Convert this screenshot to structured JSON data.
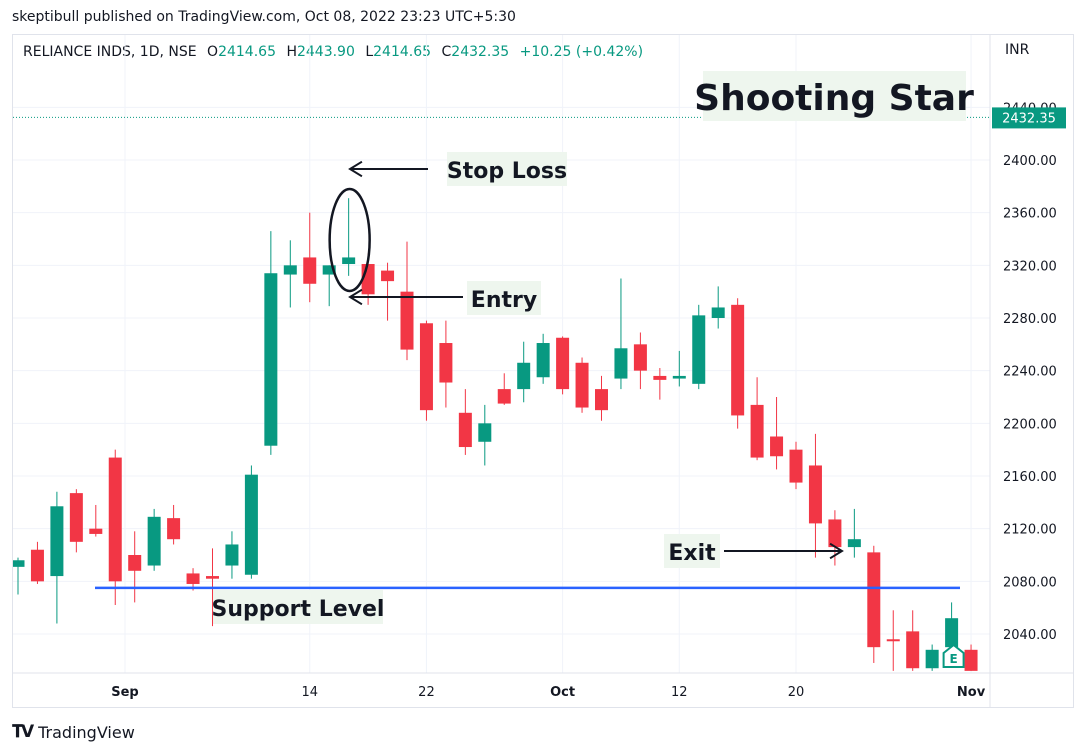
{
  "publisher_line": "skeptibull published on TradingView.com, Oct 08, 2022 23:23 UTC+5:30",
  "symbol_line": "RELIANCE INDS, 1D, NSE",
  "ohlc": {
    "o_label": "O",
    "o": "2414.65",
    "h_label": "H",
    "h": "2443.90",
    "l_label": "L",
    "l": "2414.65",
    "c_label": "C",
    "c": "2432.35",
    "change": "+10.25 (+0.42%)"
  },
  "currency": "INR",
  "logo_text": "TradingView",
  "chart_data": {
    "type": "candlestick",
    "title": "Shooting Star",
    "ylim": [
      2012,
      2445
    ],
    "y_ticks": [
      2040,
      2080,
      2120,
      2160,
      2200,
      2240,
      2280,
      2320,
      2360,
      2400,
      2440
    ],
    "y_tick_labels": [
      "2040.00",
      "2080.00",
      "2120.00",
      "2160.00",
      "2200.00",
      "2240.00",
      "2280.00",
      "2320.00",
      "2360.00",
      "2400.00",
      "2440.00"
    ],
    "x_ticks": [
      {
        "index": 5.5,
        "label": "Sep"
      },
      {
        "index": 15,
        "label": "14"
      },
      {
        "index": 21,
        "label": "22"
      },
      {
        "index": 28,
        "label": "Oct"
      },
      {
        "index": 34,
        "label": "12"
      },
      {
        "index": 40,
        "label": "20"
      },
      {
        "index": 49,
        "label": "Nov"
      }
    ],
    "last_price": 2432.35,
    "last_price_label": "2432.35",
    "support_level": 2075,
    "colors": {
      "up": "#089981",
      "down": "#f23645",
      "support": "#2962ff",
      "grid": "#f0f3fa"
    },
    "candles": [
      {
        "o": 2091,
        "h": 2098,
        "l": 2070,
        "c": 2096
      },
      {
        "o": 2104,
        "h": 2110,
        "l": 2078,
        "c": 2080
      },
      {
        "o": 2084,
        "h": 2148,
        "l": 2048,
        "c": 2137
      },
      {
        "o": 2147,
        "h": 2150,
        "l": 2102,
        "c": 2110
      },
      {
        "o": 2120,
        "h": 2138,
        "l": 2114,
        "c": 2116
      },
      {
        "o": 2174,
        "h": 2180,
        "l": 2062,
        "c": 2080
      },
      {
        "o": 2100,
        "h": 2118,
        "l": 2064,
        "c": 2088
      },
      {
        "o": 2092,
        "h": 2135,
        "l": 2088,
        "c": 2129
      },
      {
        "o": 2128,
        "h": 2138,
        "l": 2108,
        "c": 2112
      },
      {
        "o": 2086,
        "h": 2090,
        "l": 2073,
        "c": 2078
      },
      {
        "o": 2084,
        "h": 2105,
        "l": 2046,
        "c": 2082
      },
      {
        "o": 2092,
        "h": 2118,
        "l": 2082,
        "c": 2108
      },
      {
        "o": 2085,
        "h": 2168,
        "l": 2082,
        "c": 2161
      },
      {
        "o": 2183,
        "h": 2346,
        "l": 2176,
        "c": 2314
      },
      {
        "o": 2313,
        "h": 2339,
        "l": 2288,
        "c": 2320
      },
      {
        "o": 2326,
        "h": 2360,
        "l": 2292,
        "c": 2306
      },
      {
        "o": 2313,
        "h": 2320,
        "l": 2289,
        "c": 2320
      },
      {
        "o": 2321,
        "h": 2371,
        "l": 2312,
        "c": 2326
      },
      {
        "o": 2321,
        "h": 2329,
        "l": 2290,
        "c": 2298
      },
      {
        "o": 2316,
        "h": 2322,
        "l": 2278,
        "c": 2308
      },
      {
        "o": 2300,
        "h": 2338,
        "l": 2248,
        "c": 2256
      },
      {
        "o": 2276,
        "h": 2278,
        "l": 2202,
        "c": 2210
      },
      {
        "o": 2261,
        "h": 2278,
        "l": 2212,
        "c": 2231
      },
      {
        "o": 2208,
        "h": 2226,
        "l": 2176,
        "c": 2182
      },
      {
        "o": 2186,
        "h": 2214,
        "l": 2168,
        "c": 2200
      },
      {
        "o": 2226,
        "h": 2238,
        "l": 2214,
        "c": 2215
      },
      {
        "o": 2226,
        "h": 2262,
        "l": 2216,
        "c": 2246
      },
      {
        "o": 2235,
        "h": 2268,
        "l": 2230,
        "c": 2261
      },
      {
        "o": 2265,
        "h": 2266,
        "l": 2222,
        "c": 2226
      },
      {
        "o": 2246,
        "h": 2250,
        "l": 2208,
        "c": 2212
      },
      {
        "o": 2226,
        "h": 2236,
        "l": 2202,
        "c": 2210
      },
      {
        "o": 2234,
        "h": 2310,
        "l": 2226,
        "c": 2257
      },
      {
        "o": 2260,
        "h": 2269,
        "l": 2226,
        "c": 2240
      },
      {
        "o": 2236,
        "h": 2242,
        "l": 2218,
        "c": 2233
      },
      {
        "o": 2234,
        "h": 2255,
        "l": 2228,
        "c": 2236
      },
      {
        "o": 2230,
        "h": 2290,
        "l": 2226,
        "c": 2282
      },
      {
        "o": 2280,
        "h": 2304,
        "l": 2272,
        "c": 2288
      },
      {
        "o": 2290,
        "h": 2295,
        "l": 2196,
        "c": 2206
      },
      {
        "o": 2214,
        "h": 2235,
        "l": 2172,
        "c": 2174
      },
      {
        "o": 2190,
        "h": 2220,
        "l": 2165,
        "c": 2175
      },
      {
        "o": 2180,
        "h": 2186,
        "l": 2150,
        "c": 2155
      },
      {
        "o": 2168,
        "h": 2192,
        "l": 2098,
        "c": 2124
      },
      {
        "o": 2127,
        "h": 2134,
        "l": 2092,
        "c": 2106
      },
      {
        "o": 2106,
        "h": 2135,
        "l": 2098,
        "c": 2112
      },
      {
        "o": 2102,
        "h": 2107,
        "l": 2018,
        "c": 2030
      },
      {
        "o": 2036,
        "h": 2058,
        "l": 2012,
        "c": 2035
      },
      {
        "o": 2042,
        "h": 2058,
        "l": 2012,
        "c": 2014
      },
      {
        "o": 2014,
        "h": 2032,
        "l": 2012,
        "c": 2028
      },
      {
        "o": 2030,
        "h": 2064,
        "l": 2024,
        "c": 2052
      },
      {
        "o": 2028,
        "h": 2032,
        "l": 2012,
        "c": 2012
      }
    ],
    "annotations": [
      {
        "name": "stop-loss-label",
        "text": "Stop Loss"
      },
      {
        "name": "entry-label",
        "text": "Entry"
      },
      {
        "name": "exit-label",
        "text": "Exit"
      },
      {
        "name": "support-label",
        "text": "Support Level"
      }
    ],
    "event_marker_label": "E"
  }
}
